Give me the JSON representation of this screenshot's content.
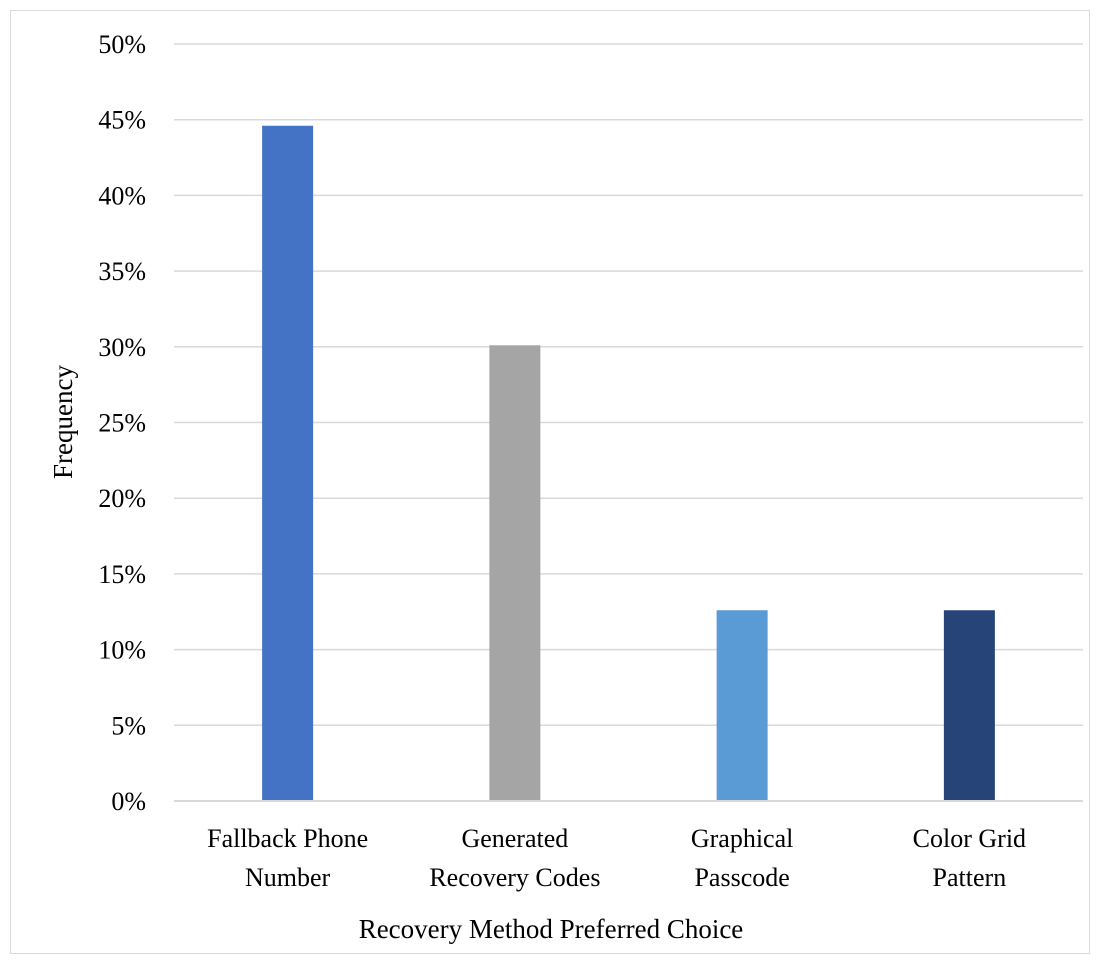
{
  "chart_data": {
    "type": "bar",
    "title": "",
    "xlabel": "Recovery Method Preferred Choice",
    "ylabel": "Frequency",
    "categories": [
      [
        "Fallback Phone",
        "Number"
      ],
      [
        "Generated",
        "Recovery Codes"
      ],
      [
        "Graphical",
        "Passcode"
      ],
      [
        "Color Grid",
        "Pattern"
      ]
    ],
    "values": [
      44.6,
      30.1,
      12.6,
      12.6
    ],
    "colors": [
      "#4472c4",
      "#a5a5a5",
      "#5b9bd5",
      "#264478"
    ],
    "ylim": [
      0,
      50
    ],
    "yticks": [
      0,
      5,
      10,
      15,
      20,
      25,
      30,
      35,
      40,
      45,
      50
    ],
    "ytick_suffix": "%",
    "grid": true,
    "legend": "none"
  }
}
